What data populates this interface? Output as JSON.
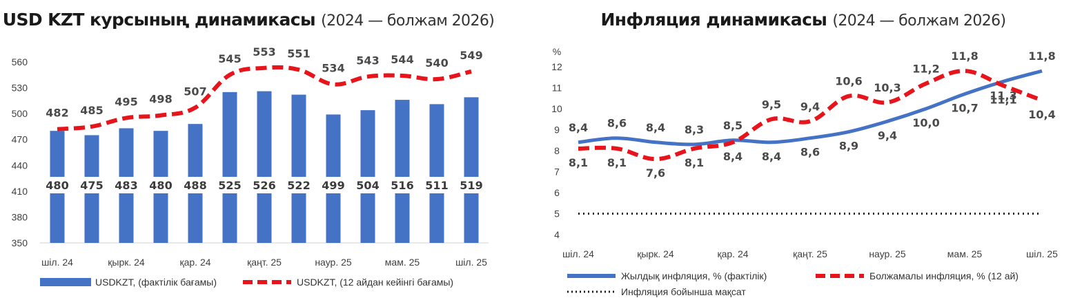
{
  "left": {
    "title": "USD KZT курсының динамикасы",
    "title_sub": "(2024 — болжам 2026)",
    "legend": {
      "bars": "USDKZT, (фактілік бағамы)",
      "line": "USDKZT, (12 айдан кейінгі бағамы)"
    }
  },
  "right": {
    "title": "Инфляция динамикасы",
    "title_sub": "(2024 — болжам 2026)",
    "unit": "%",
    "legend": {
      "actual": "Жылдық инфляция, % (фактілік)",
      "forecast": "Болжамалы инфляция, % (12 ай)",
      "target": "Инфляция бойынша мақсат"
    }
  },
  "colors": {
    "bar": "#4472c4",
    "line_blue": "#4472c4",
    "line_red": "#e8141b",
    "target": "#1a1a1a"
  },
  "chart_data": [
    {
      "type": "bar",
      "title": "USD KZT курсының динамикасы (2024 — болжам 2026)",
      "ylim": [
        350,
        560
      ],
      "yticks": [
        350,
        380,
        410,
        440,
        470,
        500,
        530,
        560
      ],
      "xtick_labels": [
        "шіл. 24",
        "қырк. 24",
        "қар. 24",
        "қаңт. 25",
        "наур. 25",
        "мам. 25",
        "шіл. 25"
      ],
      "series": [
        {
          "name": "USDKZT, (фактілік бағамы)",
          "kind": "bar",
          "values": [
            480,
            475,
            483,
            480,
            488,
            525,
            526,
            522,
            499,
            504,
            516,
            511,
            519
          ]
        },
        {
          "name": "USDKZT, (12 айдан кейінгі бағамы)",
          "kind": "line",
          "values": [
            482,
            485,
            495,
            498,
            507,
            545,
            553,
            551,
            534,
            543,
            544,
            540,
            549
          ]
        }
      ],
      "legend": "bottom"
    },
    {
      "type": "line",
      "title": "Инфляция динамикасы (2024 — болжам 2026)",
      "ylabel": "%",
      "ylim": [
        4,
        12
      ],
      "yticks": [
        4,
        5,
        6,
        7,
        8,
        9,
        10,
        11,
        12
      ],
      "xtick_labels": [
        "шіл. 24",
        "қырк. 24",
        "қар. 24",
        "қаңт. 25",
        "наур. 25",
        "мам. 25",
        "шіл. 25"
      ],
      "series": [
        {
          "name": "Жылдық инфляция, % (фактілік)",
          "values": [
            8.4,
            8.6,
            8.4,
            8.3,
            8.5,
            8.4,
            8.6,
            8.9,
            9.4,
            10.0,
            10.7,
            11.3,
            11.8
          ]
        },
        {
          "name": "Болжамалы инфляция, % (12 ай)",
          "values": [
            8.1,
            8.1,
            7.6,
            8.1,
            8.4,
            9.5,
            9.4,
            10.6,
            10.3,
            11.2,
            11.8,
            11.1,
            10.4
          ]
        },
        {
          "name": "Инфляция бойынша мақсат",
          "values": [
            5,
            5,
            5,
            5,
            5,
            5,
            5,
            5,
            5,
            5,
            5,
            5,
            5
          ]
        }
      ],
      "legend": "bottom"
    }
  ]
}
